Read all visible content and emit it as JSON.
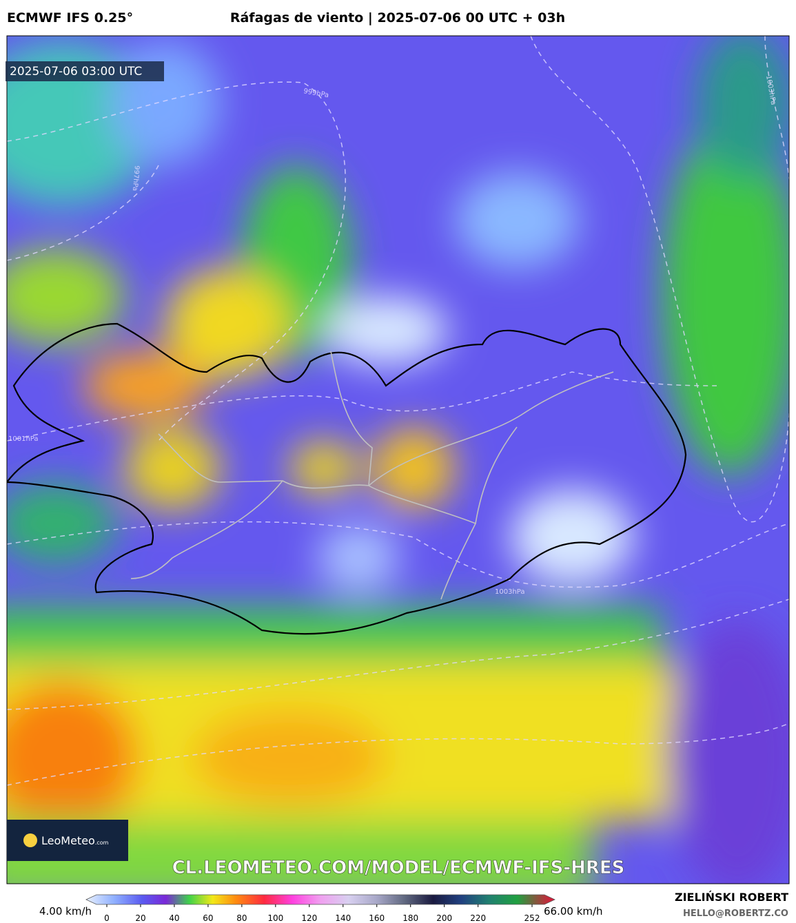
{
  "header": {
    "model": "ECMWF IFS 0.25°",
    "title": "Ráfagas de viento | 2025-07-06 00 UTC + 03h"
  },
  "map": {
    "timestamp": "2025-07-06 03:00 UTC",
    "isobars": [
      "999hPa",
      "1003hPa",
      "997hPa",
      "1001hPa",
      "1003hPa"
    ],
    "watermark": "CL.LEOMETEO.COM/MODEL/ECMWF-IFS-HRES",
    "logo": {
      "name": "LeoMeteo",
      "suffix": ".com"
    }
  },
  "colorbar": {
    "min_label": "4.00 km/h",
    "max_label": "66.00 km/h",
    "ticks": [
      0,
      20,
      40,
      60,
      80,
      100,
      120,
      140,
      160,
      180,
      200,
      220,
      252
    ]
  },
  "footer": {
    "author": "ZIELIŃSKI ROBERT",
    "email": "HELLO@ROBERTZ.CO"
  }
}
